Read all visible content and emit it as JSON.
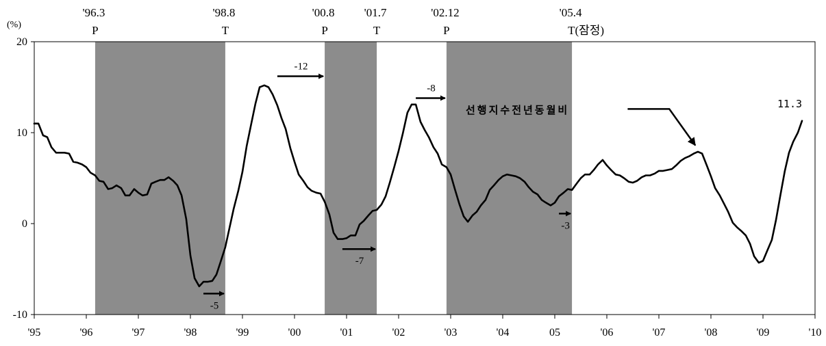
{
  "chart_data": {
    "type": "line",
    "y_unit": "(%)",
    "ylim": [
      -10,
      20
    ],
    "y_ticks": [
      "20",
      "10",
      "0",
      "-10"
    ],
    "x_tick_labels": [
      "'95",
      "'96",
      "'97",
      "'98",
      "'99",
      "'00",
      "'01",
      "'02",
      "'03",
      "'04",
      "05",
      "'06",
      "'07",
      "'08",
      "'09",
      "'10"
    ],
    "series": [
      {
        "x": [
          1995.0,
          1995.08,
          1995.17,
          1995.25,
          1995.33,
          1995.42,
          1995.5,
          1995.58,
          1995.67,
          1995.75,
          1995.83,
          1995.92,
          1996.0,
          1996.08,
          1996.17,
          1996.25,
          1996.33,
          1996.42,
          1996.5,
          1996.58,
          1996.67,
          1996.75,
          1996.83,
          1996.92,
          1997.0,
          1997.08,
          1997.17,
          1997.25,
          1997.33,
          1997.42,
          1997.5,
          1997.58,
          1997.67,
          1997.75,
          1997.83,
          1997.92,
          1998.0,
          1998.08,
          1998.17,
          1998.25,
          1998.33,
          1998.42,
          1998.5,
          1998.58,
          1998.67,
          1998.75,
          1998.83,
          1998.92,
          1999.0,
          1999.08,
          1999.17,
          1999.25,
          1999.33,
          1999.42,
          1999.5,
          1999.58,
          1999.67,
          1999.75,
          1999.83,
          1999.92,
          2000.0,
          2000.08,
          2000.17,
          2000.25,
          2000.33,
          2000.42,
          2000.5,
          2000.58,
          2000.67,
          2000.75,
          2000.83,
          2000.92,
          2001.0,
          2001.08,
          2001.17,
          2001.25,
          2001.33,
          2001.42,
          2001.5,
          2001.58,
          2001.67,
          2001.75,
          2001.83,
          2001.92,
          2002.0,
          2002.08,
          2002.17,
          2002.25,
          2002.33,
          2002.42,
          2002.5,
          2002.58,
          2002.67,
          2002.75,
          2002.83,
          2002.92,
          2003.0,
          2003.08,
          2003.17,
          2003.25,
          2003.33,
          2003.42,
          2003.5,
          2003.58,
          2003.67,
          2003.75,
          2003.83,
          2003.92,
          2004.0,
          2004.08,
          2004.17,
          2004.25,
          2004.33,
          2004.42,
          2004.5,
          2004.58,
          2004.67,
          2004.75,
          2004.83,
          2004.92,
          2005.0,
          2005.08,
          2005.17,
          2005.25,
          2005.33,
          2005.42,
          2005.5,
          2005.58,
          2005.67,
          2005.75,
          2005.83,
          2005.92,
          2006.0,
          2006.08,
          2006.17,
          2006.25,
          2006.33,
          2006.42,
          2006.5,
          2006.58,
          2006.67,
          2006.75,
          2006.83,
          2006.92,
          2007.0,
          2007.08,
          2007.17,
          2007.25,
          2007.33,
          2007.42,
          2007.5,
          2007.58,
          2007.67,
          2007.75,
          2007.83,
          2007.92,
          2008.0,
          2008.08,
          2008.17,
          2008.25,
          2008.33,
          2008.42,
          2008.5,
          2008.58,
          2008.67,
          2008.75,
          2008.83,
          2008.92,
          2009.0,
          2009.08,
          2009.17,
          2009.25,
          2009.33,
          2009.42,
          2009.5,
          2009.58,
          2009.67,
          2009.75
        ],
        "values": [
          11.0,
          11.0,
          9.7,
          9.5,
          8.4,
          7.8,
          7.8,
          7.8,
          7.7,
          6.8,
          6.7,
          6.5,
          6.2,
          5.6,
          5.3,
          4.7,
          4.6,
          3.8,
          3.9,
          4.2,
          3.9,
          3.1,
          3.1,
          3.8,
          3.4,
          3.1,
          3.2,
          4.4,
          4.6,
          4.8,
          4.8,
          5.1,
          4.7,
          4.2,
          3.1,
          0.5,
          -3.5,
          -6.0,
          -6.9,
          -6.4,
          -6.4,
          -6.3,
          -5.6,
          -4.2,
          -2.6,
          -0.5,
          1.6,
          3.6,
          5.7,
          8.5,
          11.0,
          13.2,
          15.0,
          15.2,
          15.0,
          14.2,
          13.0,
          11.6,
          10.4,
          8.3,
          6.8,
          5.4,
          4.7,
          4.0,
          3.6,
          3.4,
          3.3,
          2.4,
          1.0,
          -1.0,
          -1.7,
          -1.7,
          -1.6,
          -1.3,
          -1.3,
          -0.1,
          0.3,
          0.9,
          1.4,
          1.5,
          2.1,
          3.0,
          4.5,
          6.3,
          8.0,
          9.9,
          12.2,
          13.1,
          13.1,
          11.2,
          10.3,
          9.5,
          8.4,
          7.7,
          6.5,
          6.2,
          5.4,
          3.8,
          2.1,
          0.8,
          0.2,
          0.9,
          1.3,
          2.0,
          2.6,
          3.7,
          4.2,
          4.8,
          5.2,
          5.4,
          5.3,
          5.2,
          5.0,
          4.6,
          4.0,
          3.5,
          3.2,
          2.6,
          2.3,
          2.0,
          2.3,
          3.0,
          3.4,
          3.8,
          3.7,
          4.4,
          5.0,
          5.4,
          5.4,
          5.9,
          6.5,
          7.0,
          6.4,
          5.9,
          5.4,
          5.3,
          5.0,
          4.6,
          4.5,
          4.7,
          5.1,
          5.3,
          5.3,
          5.5,
          5.8,
          5.8,
          5.9,
          6.0,
          6.4,
          6.9,
          7.2,
          7.4,
          7.7,
          7.9,
          7.7,
          6.4,
          5.2,
          3.9,
          3.1,
          2.2,
          1.3,
          0.1,
          -0.4,
          -0.8,
          -1.3,
          -2.2,
          -3.6,
          -4.3,
          -4.1,
          -3.0,
          -1.8,
          0.4,
          3.0,
          5.8,
          7.8,
          9.0,
          10.0,
          11.3
        ]
      }
    ],
    "shaded_periods": [
      {
        "start": 1996.17,
        "end": 1998.67,
        "start_label": "'96.3",
        "start_mark": "P",
        "end_label": "'98.8",
        "end_mark": "T"
      },
      {
        "start": 2000.58,
        "end": 2001.58,
        "start_label": "'00.8",
        "start_mark": "P",
        "end_label": "'01.7",
        "end_mark": "T"
      },
      {
        "start": 2002.92,
        "end": 2005.33,
        "start_label": "'02.12",
        "start_mark": "P",
        "end_label": "'05.4",
        "end_mark": "T(잠정)"
      }
    ],
    "lead_arrows": [
      {
        "label": "-5",
        "x_from": 1998.25,
        "x_to": 1998.67,
        "y": -7.7,
        "label_pos": "below"
      },
      {
        "label": "-12",
        "x_from": 1999.67,
        "x_to": 2000.58,
        "y": 16.2,
        "label_pos": "above"
      },
      {
        "label": "-7",
        "x_from": 2000.92,
        "x_to": 2001.58,
        "y": -2.8,
        "label_pos": "below"
      },
      {
        "label": "-8",
        "x_from": 2002.33,
        "x_to": 2002.92,
        "y": 13.8,
        "label_pos": "above"
      },
      {
        "label": "-3",
        "x_from": 2005.08,
        "x_to": 2005.33,
        "y": 1.1,
        "label_pos": "below"
      }
    ],
    "annotations": {
      "series_label": "선행지수전년동월비",
      "last_value_label": "11.3"
    }
  }
}
